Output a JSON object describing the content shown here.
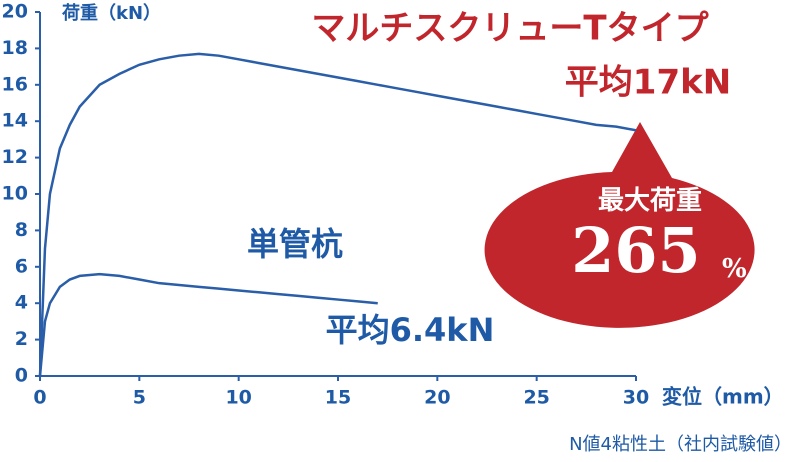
{
  "chart_data": {
    "type": "line",
    "title": "マルチスクリューTタイプ",
    "y_label": "荷重（kN）",
    "x_label": "変位（mm）",
    "note": "N値4粘性土（社内試験値）",
    "annotations": {
      "series1_label": "単管杭",
      "series1_mean": "平均6.4kN",
      "series0_mean": "平均17kN",
      "bubble_title": "最大荷重",
      "bubble_value": "265",
      "bubble_unit": "%"
    },
    "xlim": [
      0,
      30
    ],
    "xticks": [
      0,
      5,
      10,
      15,
      20,
      25,
      30
    ],
    "ylim": [
      0,
      20
    ],
    "yticks": [
      0,
      2,
      4,
      6,
      8,
      10,
      12,
      14,
      16,
      18,
      20
    ],
    "series": [
      {
        "name": "マルチスクリューTタイプ",
        "color": "#2a5ea8",
        "x": [
          0,
          0.25,
          0.5,
          1,
          1.5,
          2,
          3,
          4,
          5,
          6,
          7,
          8,
          9,
          10,
          11,
          12,
          13,
          14,
          15,
          16,
          17,
          18,
          19,
          20,
          21,
          22,
          23,
          24,
          25,
          26,
          27,
          28,
          29,
          30
        ],
        "values": [
          0,
          7,
          10,
          12.5,
          13.8,
          14.8,
          16.0,
          16.6,
          17.1,
          17.4,
          17.6,
          17.7,
          17.6,
          17.4,
          17.2,
          17.0,
          16.8,
          16.6,
          16.4,
          16.2,
          16.0,
          15.8,
          15.6,
          15.4,
          15.2,
          15.0,
          14.8,
          14.6,
          14.4,
          14.2,
          14.0,
          13.8,
          13.7,
          13.5
        ]
      },
      {
        "name": "単管杭",
        "color": "#2a5ea8",
        "x": [
          0,
          0.25,
          0.5,
          1,
          1.5,
          2,
          3,
          4,
          5,
          6,
          7,
          8,
          9,
          10,
          11,
          12,
          13,
          14,
          15,
          16,
          17
        ],
        "values": [
          0,
          3,
          4,
          4.9,
          5.3,
          5.5,
          5.6,
          5.5,
          5.3,
          5.1,
          5.0,
          4.9,
          4.8,
          4.7,
          4.6,
          4.5,
          4.4,
          4.3,
          4.2,
          4.1,
          4.0
        ]
      }
    ]
  }
}
